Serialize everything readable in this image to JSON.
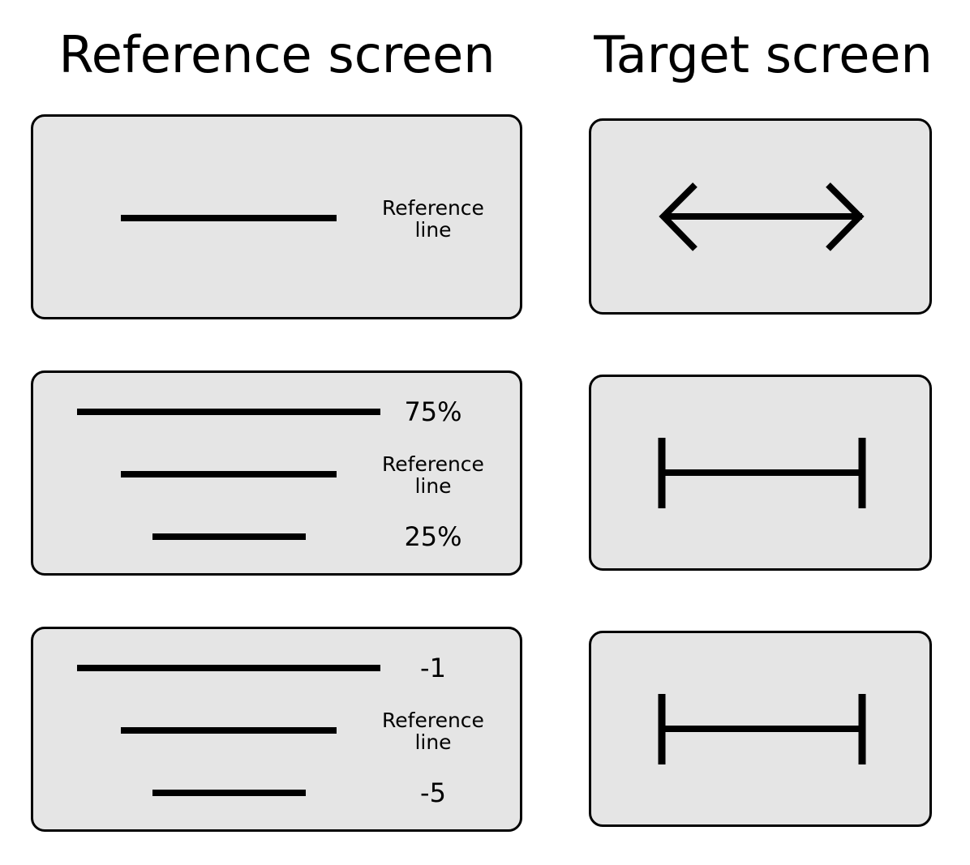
{
  "headings": {
    "reference": "Reference screen",
    "target": "Target screen"
  },
  "reference_panels": [
    {
      "reference_label_line1": "Reference",
      "reference_label_line2": "line"
    },
    {
      "upper_value": "75%",
      "reference_label_line1": "Reference",
      "reference_label_line2": "line",
      "lower_value": "25%"
    },
    {
      "upper_value": "-1",
      "reference_label_line1": "Reference",
      "reference_label_line2": "line",
      "lower_value": "-5"
    }
  ],
  "target_panels": [
    {
      "icon": "double-headed-arrow-icon"
    },
    {
      "icon": "h-bar-interval-icon"
    },
    {
      "icon": "h-bar-interval-icon"
    }
  ],
  "colors": {
    "panel_fill": "#e5e5e5",
    "stroke": "#000000",
    "background": "#ffffff"
  }
}
